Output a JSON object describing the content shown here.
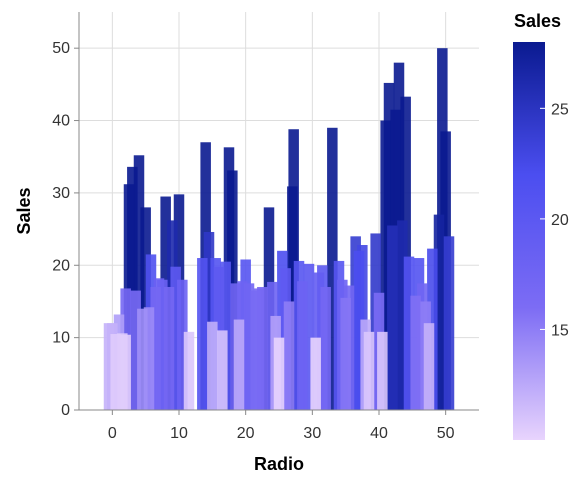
{
  "chart_data": {
    "type": "bar",
    "title": "",
    "xlabel": "Radio",
    "ylabel": "Sales",
    "xlim": [
      -5,
      55
    ],
    "ylim": [
      0,
      55
    ],
    "x_ticks": [
      0,
      10,
      20,
      30,
      40,
      50
    ],
    "y_ticks": [
      0,
      10,
      20,
      30,
      40,
      50
    ],
    "grid": true,
    "color_encoding": {
      "field": "Sales",
      "title": "Sales",
      "domain": [
        10,
        28
      ],
      "range": [
        "#e8d4fd",
        "#7c6cf4",
        "#4b4ef0",
        "#0a1a90"
      ],
      "legend_ticks": [
        15,
        20,
        25
      ],
      "legend_position": "right"
    },
    "points": [
      {
        "x": -0.5,
        "y": 12.0
      },
      {
        "x": 0.0,
        "y": 12.0
      },
      {
        "x": 0.5,
        "y": 10.5
      },
      {
        "x": 1.0,
        "y": 13.2
      },
      {
        "x": 1.5,
        "y": 10.6
      },
      {
        "x": 2.0,
        "y": 16.8
      },
      {
        "x": 2.0,
        "y": 10.4
      },
      {
        "x": 2.5,
        "y": 31.2
      },
      {
        "x": 3.0,
        "y": 33.6
      },
      {
        "x": 3.5,
        "y": 16.5
      },
      {
        "x": 4.0,
        "y": 35.2
      },
      {
        "x": 4.5,
        "y": 14.0
      },
      {
        "x": 5.0,
        "y": 28.0
      },
      {
        "x": 5.5,
        "y": 14.2
      },
      {
        "x": 5.8,
        "y": 21.5
      },
      {
        "x": 6.5,
        "y": 17.0
      },
      {
        "x": 7.0,
        "y": 18.2
      },
      {
        "x": 7.5,
        "y": 18.0
      },
      {
        "x": 8.0,
        "y": 29.5
      },
      {
        "x": 8.5,
        "y": 17.0
      },
      {
        "x": 9.0,
        "y": 26.2
      },
      {
        "x": 9.5,
        "y": 19.8
      },
      {
        "x": 10.0,
        "y": 29.8
      },
      {
        "x": 10.5,
        "y": 18.0
      },
      {
        "x": 11.5,
        "y": 10.8
      },
      {
        "x": 13.5,
        "y": 21.0
      },
      {
        "x": 14.0,
        "y": 37.0
      },
      {
        "x": 14.5,
        "y": 24.6
      },
      {
        "x": 15.0,
        "y": 12.2
      },
      {
        "x": 15.5,
        "y": 21.0
      },
      {
        "x": 16.0,
        "y": 19.8
      },
      {
        "x": 16.5,
        "y": 11.0
      },
      {
        "x": 17.0,
        "y": 20.5
      },
      {
        "x": 17.5,
        "y": 36.3
      },
      {
        "x": 18.0,
        "y": 33.1
      },
      {
        "x": 18.5,
        "y": 17.5
      },
      {
        "x": 19.0,
        "y": 12.5
      },
      {
        "x": 19.5,
        "y": 17.8
      },
      {
        "x": 20.0,
        "y": 20.8
      },
      {
        "x": 20.5,
        "y": 17.5
      },
      {
        "x": 21.5,
        "y": 16.5
      },
      {
        "x": 22.0,
        "y": 16.8
      },
      {
        "x": 22.5,
        "y": 17.0
      },
      {
        "x": 23.5,
        "y": 28.0
      },
      {
        "x": 24.0,
        "y": 17.7
      },
      {
        "x": 24.5,
        "y": 13.0
      },
      {
        "x": 25.0,
        "y": 10.0
      },
      {
        "x": 25.5,
        "y": 22.0
      },
      {
        "x": 26.0,
        "y": 19.6
      },
      {
        "x": 26.5,
        "y": 15.0
      },
      {
        "x": 27.0,
        "y": 30.9
      },
      {
        "x": 27.2,
        "y": 38.8
      },
      {
        "x": 28.0,
        "y": 20.6
      },
      {
        "x": 28.5,
        "y": 17.8
      },
      {
        "x": 29.5,
        "y": 20.2
      },
      {
        "x": 30.5,
        "y": 10.0
      },
      {
        "x": 31.0,
        "y": 19.0
      },
      {
        "x": 31.5,
        "y": 20.0
      },
      {
        "x": 32.0,
        "y": 17.0
      },
      {
        "x": 33.0,
        "y": 39.0
      },
      {
        "x": 34.0,
        "y": 20.6
      },
      {
        "x": 34.5,
        "y": 18.0
      },
      {
        "x": 35.0,
        "y": 15.5
      },
      {
        "x": 35.5,
        "y": 17.2
      },
      {
        "x": 36.5,
        "y": 24.0
      },
      {
        "x": 37.0,
        "y": 22.0
      },
      {
        "x": 37.5,
        "y": 22.8
      },
      {
        "x": 38.0,
        "y": 12.5
      },
      {
        "x": 38.5,
        "y": 10.8
      },
      {
        "x": 39.5,
        "y": 24.4
      },
      {
        "x": 40.0,
        "y": 16.2
      },
      {
        "x": 40.5,
        "y": 10.8
      },
      {
        "x": 41.0,
        "y": 40.0
      },
      {
        "x": 41.5,
        "y": 45.2
      },
      {
        "x": 42.0,
        "y": 25.5
      },
      {
        "x": 42.5,
        "y": 41.5
      },
      {
        "x": 43.0,
        "y": 48.0
      },
      {
        "x": 43.5,
        "y": 26.2
      },
      {
        "x": 44.0,
        "y": 43.3
      },
      {
        "x": 44.5,
        "y": 21.2
      },
      {
        "x": 45.5,
        "y": 15.8
      },
      {
        "x": 46.0,
        "y": 21.0
      },
      {
        "x": 46.5,
        "y": 17.5
      },
      {
        "x": 47.0,
        "y": 15.0
      },
      {
        "x": 47.5,
        "y": 12.0
      },
      {
        "x": 48.0,
        "y": 22.3
      },
      {
        "x": 49.0,
        "y": 27.0
      },
      {
        "x": 49.5,
        "y": 50.0
      },
      {
        "x": 50.0,
        "y": 38.5
      },
      {
        "x": 50.5,
        "y": 24.0
      }
    ]
  }
}
